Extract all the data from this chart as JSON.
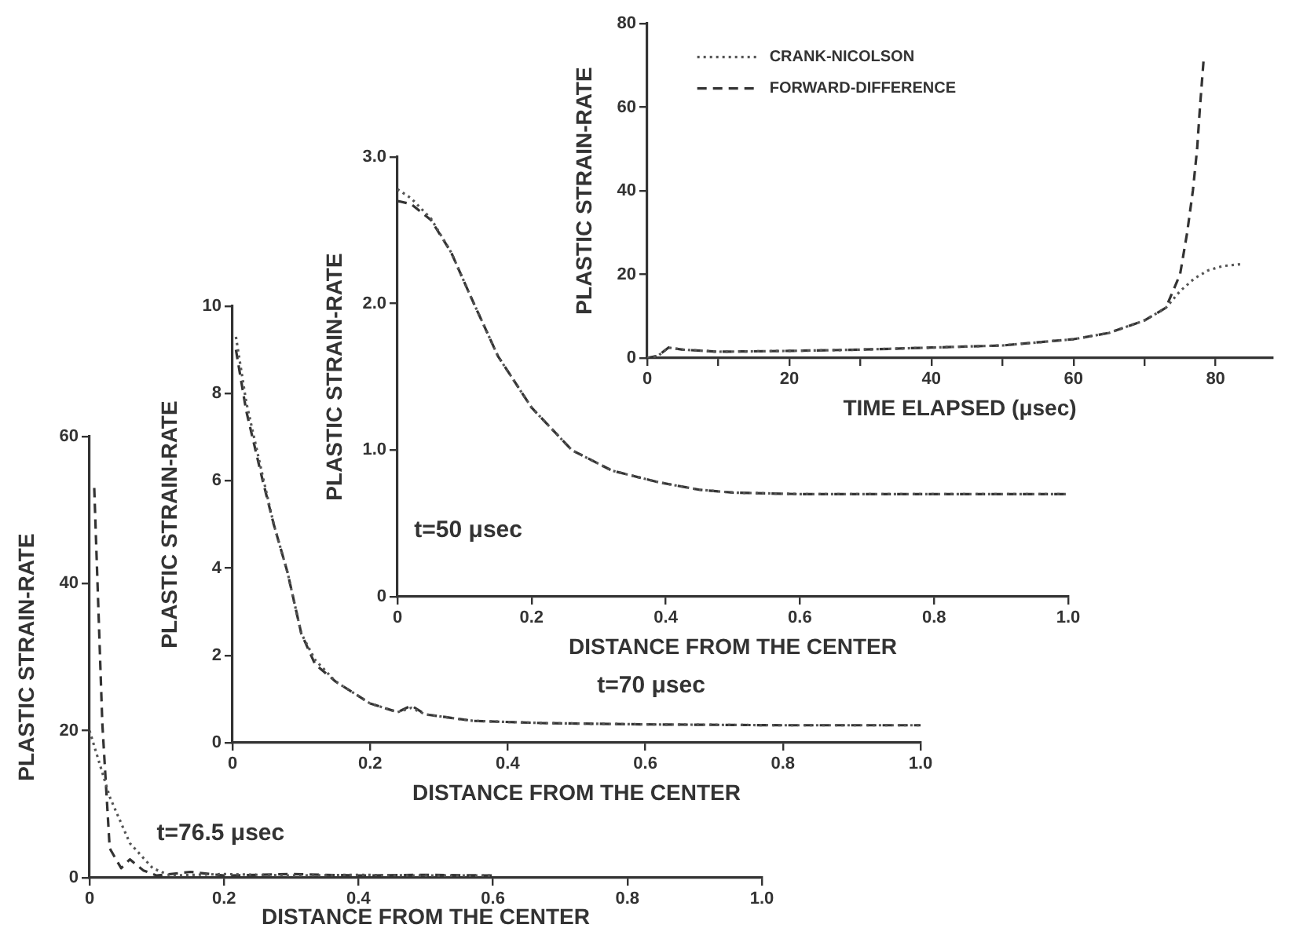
{
  "chart_data": [
    {
      "type": "line",
      "xlabel": "TIME ELAPSED (μsec)",
      "ylabel": "PLASTIC STRAIN-RATE",
      "xlim": [
        0,
        88
      ],
      "xticks": [
        0,
        {
          "value": 10,
          "label": null
        },
        20,
        {
          "value": 30,
          "label": null
        },
        40,
        {
          "value": 50,
          "label": null
        },
        60,
        {
          "value": 70,
          "label": null
        },
        80
      ],
      "ylim": [
        0,
        80
      ],
      "yticks": [
        0,
        20,
        40,
        60,
        80
      ],
      "legend": "top left",
      "marker": "none",
      "series": [
        {
          "name": "CRANK-NICOLSON",
          "color": "#555555",
          "line_style": "dotted",
          "x": [
            0,
            1.5,
            3,
            5,
            10,
            20,
            30,
            40,
            50,
            60,
            65,
            70,
            73,
            75,
            77,
            79,
            81,
            84
          ],
          "values": [
            0,
            0.5,
            2.5,
            2,
            1.5,
            1.7,
            2,
            2.5,
            3,
            4.5,
            6,
            9,
            12,
            16,
            19,
            21,
            22,
            22.5
          ]
        },
        {
          "name": "FORWARD-DIFFERENCE",
          "color": "#333333",
          "line_style": "dashed",
          "x": [
            0,
            1.5,
            3,
            5,
            10,
            20,
            30,
            40,
            50,
            60,
            65,
            70,
            73,
            75,
            76,
            76.8,
            77.4,
            77.8,
            78.3
          ],
          "values": [
            0,
            0.5,
            2.5,
            2,
            1.5,
            1.7,
            2,
            2.5,
            3,
            4.5,
            6,
            9,
            12,
            20,
            30,
            40,
            50,
            60,
            71
          ]
        }
      ]
    },
    {
      "type": "line",
      "xlabel": "DISTANCE FROM THE CENTER",
      "ylabel": "PLASTIC STRAIN-RATE",
      "annotations": [
        "t=50 μsec"
      ],
      "xlim": [
        0,
        1
      ],
      "xticks": [
        0,
        0.2,
        0.4,
        0.6,
        0.8,
        {
          "value": 1,
          "label": "1.0"
        }
      ],
      "ylim": [
        0,
        3
      ],
      "yticks": [
        0,
        {
          "value": 1,
          "label": "1.0"
        },
        {
          "value": 2,
          "label": "2.0"
        },
        {
          "value": 3,
          "label": "3.0"
        }
      ],
      "marker": "none",
      "series": [
        {
          "color": "#555555",
          "line_style": "dotted",
          "x": [
            0,
            0.02,
            0.05,
            0.08,
            0.11,
            0.15,
            0.2,
            0.26,
            0.32,
            0.39,
            0.45,
            0.5,
            0.6,
            0.8,
            1.0
          ],
          "values": [
            2.78,
            2.72,
            2.58,
            2.35,
            2.04,
            1.64,
            1.29,
            1.0,
            0.86,
            0.78,
            0.73,
            0.71,
            0.7,
            0.7,
            0.7
          ]
        },
        {
          "color": "#333333",
          "line_style": "dashed",
          "x": [
            0,
            0.02,
            0.05,
            0.08,
            0.11,
            0.15,
            0.2,
            0.26,
            0.32,
            0.39,
            0.45,
            0.5,
            0.6,
            0.8,
            1.0
          ],
          "values": [
            2.7,
            2.68,
            2.57,
            2.35,
            2.04,
            1.64,
            1.29,
            1.0,
            0.86,
            0.78,
            0.73,
            0.71,
            0.7,
            0.7,
            0.7
          ]
        }
      ]
    },
    {
      "type": "line",
      "xlabel": "DISTANCE FROM THE CENTER",
      "ylabel": "PLASTIC STRAIN-RATE",
      "annotations": [
        "t=70 μsec"
      ],
      "xlim": [
        0,
        1
      ],
      "xticks": [
        0,
        0.2,
        0.4,
        0.6,
        0.8,
        {
          "value": 1,
          "label": "1.0"
        }
      ],
      "ylim": [
        0,
        10
      ],
      "yticks": [
        0,
        2,
        4,
        6,
        8,
        10
      ],
      "marker": "none",
      "series": [
        {
          "color": "#555555",
          "line_style": "dotted",
          "x": [
            0.005,
            0.02,
            0.044,
            0.06,
            0.08,
            0.1,
            0.12,
            0.15,
            0.2,
            0.24,
            0.26,
            0.28,
            0.35,
            0.45,
            0.6,
            0.8,
            1.0
          ],
          "values": [
            9.3,
            7.8,
            6.1,
            5.0,
            3.9,
            2.5,
            1.9,
            1.4,
            0.9,
            0.7,
            0.8,
            0.65,
            0.5,
            0.45,
            0.42,
            0.4,
            0.4
          ]
        },
        {
          "color": "#333333",
          "line_style": "dashed",
          "x": [
            0.005,
            0.02,
            0.044,
            0.06,
            0.08,
            0.1,
            0.12,
            0.15,
            0.2,
            0.24,
            0.26,
            0.28,
            0.35,
            0.45,
            0.6,
            0.8,
            1.0
          ],
          "values": [
            9.0,
            7.6,
            6.0,
            5.0,
            3.9,
            2.5,
            1.8,
            1.4,
            0.9,
            0.7,
            0.85,
            0.65,
            0.5,
            0.45,
            0.42,
            0.4,
            0.4
          ]
        }
      ]
    },
    {
      "type": "line",
      "xlabel": "DISTANCE FROM THE CENTER",
      "ylabel": "PLASTIC STRAIN-RATE",
      "annotations": [
        "t=76.5 μsec"
      ],
      "xlim": [
        0,
        1
      ],
      "xticks": [
        0,
        0.2,
        0.4,
        0.6,
        0.8,
        {
          "value": 1,
          "label": "1.0"
        }
      ],
      "ylim": [
        0,
        60
      ],
      "yticks": [
        0,
        20,
        40,
        60
      ],
      "marker": "none",
      "series": [
        {
          "color": "#555555",
          "line_style": "dotted",
          "x": [
            0,
            0.03,
            0.06,
            0.094,
            0.12,
            0.2,
            0.3,
            0.4,
            0.5,
            0.6
          ],
          "values": [
            20,
            11,
            4.7,
            1.3,
            0.3,
            0.5,
            0.3,
            0.4,
            0.3,
            0.3
          ]
        },
        {
          "color": "#333333",
          "line_style": "dashed",
          "x": [
            0.007,
            0.019,
            0.03,
            0.047,
            0.06,
            0.08,
            0.1,
            0.15,
            0.2,
            0.3,
            0.4,
            0.5,
            0.6
          ],
          "values": [
            53,
            21,
            4,
            1.3,
            2.5,
            1,
            0.3,
            0.8,
            0.3,
            0.5,
            0.3,
            0.4,
            0.3
          ]
        }
      ]
    }
  ]
}
